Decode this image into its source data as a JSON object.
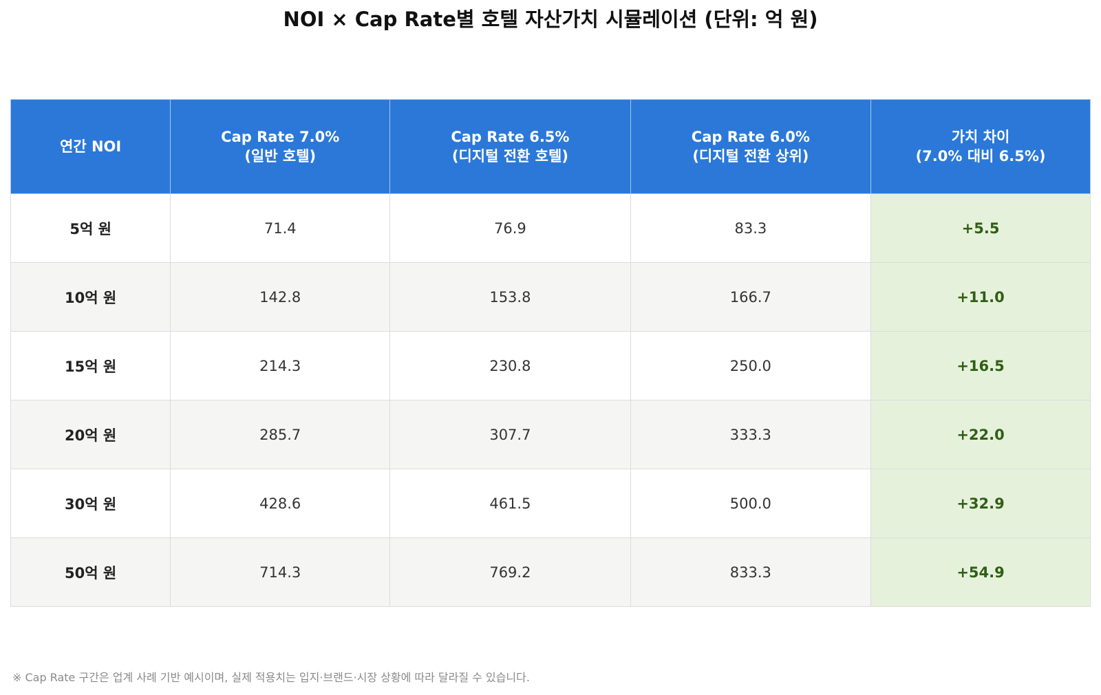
{
  "title": "NOI × Cap Rate별 호텔 자산가치 시뮬레이션 (단위: 억 원)",
  "table": {
    "headers": [
      {
        "line1": "연간 NOI",
        "line2": ""
      },
      {
        "line1": "Cap Rate 7.0%",
        "line2": "(일반 호텔)"
      },
      {
        "line1": "Cap Rate 6.5%",
        "line2": "(디지털 전환 호텔)"
      },
      {
        "line1": "Cap Rate 6.0%",
        "line2": "(디지털 전환 상위)"
      },
      {
        "line1": "가치 차이",
        "line2": "(7.0% 대비 6.5%)"
      }
    ],
    "rows": [
      {
        "noi": "5억 원",
        "cap70": "71.4",
        "cap65": "76.9",
        "cap60": "83.3",
        "diff": "+5.5"
      },
      {
        "noi": "10억 원",
        "cap70": "142.8",
        "cap65": "153.8",
        "cap60": "166.7",
        "diff": "+11.0"
      },
      {
        "noi": "15억 원",
        "cap70": "214.3",
        "cap65": "230.8",
        "cap60": "250.0",
        "diff": "+16.5"
      },
      {
        "noi": "20억 원",
        "cap70": "285.7",
        "cap65": "307.7",
        "cap60": "333.3",
        "diff": "+22.0"
      },
      {
        "noi": "30억 원",
        "cap70": "428.6",
        "cap65": "461.5",
        "cap60": "500.0",
        "diff": "+32.9"
      },
      {
        "noi": "50억 원",
        "cap70": "714.3",
        "cap65": "769.2",
        "cap60": "833.3",
        "diff": "+54.9"
      }
    ]
  },
  "footnote": "※ Cap Rate 구간은 업계 사례 기반 예시이며, 실제 적용치는 입지·브랜드·시장 상황에 따라 달라질 수 있습니다.",
  "colors": {
    "header_bg": "#2b78d8",
    "diff_bg": "#e6f1dc",
    "diff_text": "#2f5f14",
    "stripe_bg": "#f5f5f4"
  },
  "chart_data": {
    "type": "table",
    "title": "NOI × Cap Rate별 호텔 자산가치 시뮬레이션 (단위: 억 원)",
    "columns": [
      "연간 NOI",
      "Cap Rate 7.0% (일반 호텔)",
      "Cap Rate 6.5% (디지털 전환 호텔)",
      "Cap Rate 6.0% (디지털 전환 상위)",
      "가치 차이 (7.0% 대비 6.5%)"
    ],
    "categories": [
      "5억 원",
      "10억 원",
      "15억 원",
      "20억 원",
      "30억 원",
      "50억 원"
    ],
    "series": [
      {
        "name": "Cap Rate 7.0% (일반 호텔)",
        "values": [
          71.4,
          142.8,
          214.3,
          285.7,
          428.6,
          714.3
        ]
      },
      {
        "name": "Cap Rate 6.5% (디지털 전환 호텔)",
        "values": [
          76.9,
          153.8,
          230.8,
          307.7,
          461.5,
          769.2
        ]
      },
      {
        "name": "Cap Rate 6.0% (디지털 전환 상위)",
        "values": [
          83.3,
          166.7,
          250.0,
          333.3,
          500.0,
          833.3
        ]
      },
      {
        "name": "가치 차이 (7.0% 대비 6.5%)",
        "values": [
          5.5,
          11.0,
          16.5,
          22.0,
          32.9,
          54.9
        ]
      }
    ]
  }
}
